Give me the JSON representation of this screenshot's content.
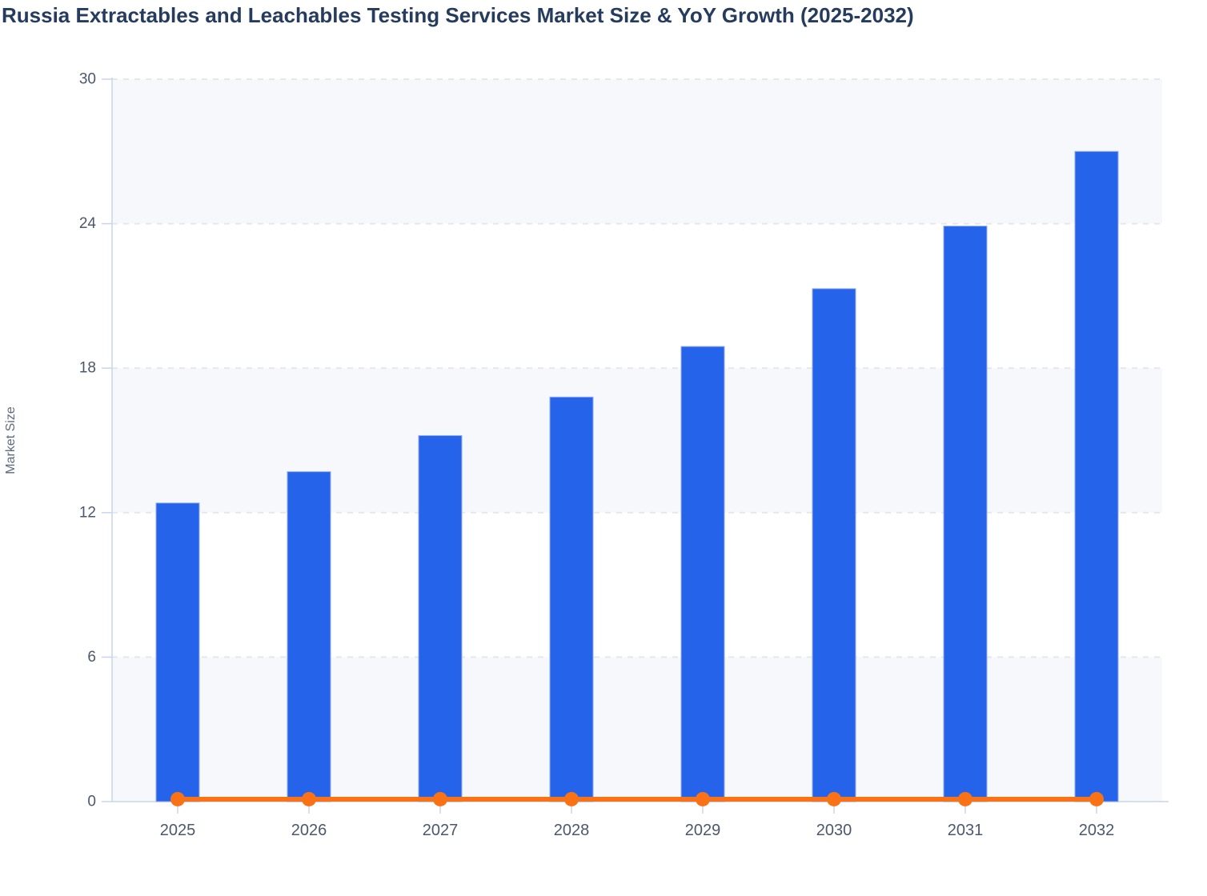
{
  "page": {
    "title": "Russia Extractables and Leachables Testing Services Market Size & YoY Growth (2025-2032)"
  },
  "chart_data": {
    "type": "bar",
    "title": "Russia Extractables and Leachables Testing Services Market Size & YoY Growth (2025-2032)",
    "categories": [
      "2025",
      "2026",
      "2027",
      "2028",
      "2029",
      "2030",
      "2031",
      "2032"
    ],
    "series": [
      {
        "name": "Market Size",
        "type": "bar",
        "color": "#2563eb",
        "values": [
          12.4,
          13.7,
          15.2,
          16.8,
          18.9,
          21.3,
          23.9,
          27.0
        ]
      },
      {
        "name": "YoY Growth",
        "type": "line",
        "color": "#f97316",
        "values": [
          0.1,
          0.1,
          0.1,
          0.1,
          0.1,
          0.1,
          0.1,
          0.1
        ]
      }
    ],
    "xlabel": "",
    "ylabel": "Market Size",
    "ylim": [
      0,
      30
    ],
    "yticks": [
      0,
      6,
      12,
      18,
      24,
      30
    ],
    "grid": "horizontal-dashed",
    "plot_bands": "alternating-horizontal",
    "legend_position": "none"
  },
  "colors": {
    "title": "#263c5f",
    "bar": "#2563eb",
    "bar_border": "#93acf0",
    "line": "#f97316",
    "band": "#f7f8fb",
    "grid": "#e4e7ec",
    "axis": "#c9d4f0",
    "tick_text": "#4b586c",
    "ylabel_text": "#5d6b7e"
  }
}
